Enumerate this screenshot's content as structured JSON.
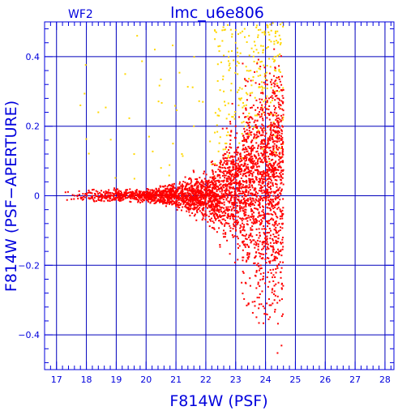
{
  "chart_data": {
    "type": "scatter",
    "title": "lmc_u6e806",
    "panel_label": "WF2",
    "xlabel": "F814W (PSF)",
    "ylabel": "F814W (PSF−APERTURE)",
    "xlim": [
      16.6,
      28.3
    ],
    "ylim": [
      -0.5,
      0.5
    ],
    "grid": true,
    "x_ticks": [
      "17",
      "18",
      "19",
      "20",
      "21",
      "22",
      "23",
      "24",
      "25",
      "26",
      "27",
      "28"
    ],
    "y_ticks": [
      "−0.4",
      "−0.2",
      "0",
      "0.2",
      "0.4"
    ],
    "y_tick_values": [
      -0.4,
      -0.2,
      0,
      0.2,
      0.4
    ],
    "x_tick_values": [
      17,
      18,
      19,
      20,
      21,
      22,
      23,
      24,
      25,
      26,
      27,
      28
    ],
    "colors": {
      "axes": "#0000dd",
      "grid": "#0000bb",
      "series_red": "#ee0000",
      "series_yellow": "#ffd700"
    },
    "series": [
      {
        "color": "#ff0000",
        "distribution": "dense cloud: tight locus near 0 from x=17.3 to 21.5, widening to about ±0.3 between x=22.5 and 24.6, sharp cutoff near x=24.6",
        "points": [
          [
            17.3,
            0.01
          ],
          [
            17.5,
            -0.01
          ],
          [
            17.7,
            0.0
          ],
          [
            17.9,
            -0.01
          ],
          [
            18.1,
            0.01
          ],
          [
            18.3,
            0.0
          ],
          [
            18.5,
            -0.01
          ],
          [
            18.7,
            0.01
          ],
          [
            18.9,
            0.0
          ],
          [
            19.1,
            -0.01
          ],
          [
            19.3,
            0.01
          ],
          [
            19.5,
            0.0
          ],
          [
            19.7,
            -0.01
          ],
          [
            19.9,
            0.01
          ],
          [
            20.1,
            0.0
          ],
          [
            20.3,
            0.01
          ],
          [
            20.5,
            -0.01
          ],
          [
            20.7,
            0.02
          ],
          [
            20.9,
            0.0
          ],
          [
            21.1,
            -0.02
          ],
          [
            21.3,
            0.02
          ],
          [
            21.5,
            0.0
          ],
          [
            21.7,
            -0.02
          ],
          [
            21.9,
            0.03
          ],
          [
            22.1,
            -0.03
          ],
          [
            22.3,
            0.04
          ],
          [
            22.5,
            -0.04
          ],
          [
            22.7,
            0.05
          ],
          [
            22.9,
            -0.06
          ],
          [
            23.1,
            0.08
          ],
          [
            23.3,
            -0.1
          ],
          [
            23.5,
            0.12
          ],
          [
            23.7,
            -0.14
          ],
          [
            23.9,
            0.16
          ],
          [
            24.1,
            -0.18
          ],
          [
            24.3,
            0.2
          ],
          [
            24.5,
            -0.22
          ],
          [
            23.2,
            -0.25
          ],
          [
            23.6,
            0.26
          ],
          [
            24.0,
            -0.34
          ],
          [
            24.2,
            0.32
          ],
          [
            23.4,
            0.18
          ],
          [
            24.4,
            0.28
          ],
          [
            23.8,
            -0.26
          ],
          [
            22.8,
            0.14
          ],
          [
            22.6,
            -0.1
          ],
          [
            24.3,
            -0.3
          ],
          [
            23.0,
            0.2
          ]
        ]
      },
      {
        "color": "#ffd700",
        "distribution": "sparse points above the main locus, mostly 0.05 to 0.5, concentrated near x=23 to 24.5",
        "points": [
          [
            17.8,
            0.26
          ],
          [
            18.4,
            0.24
          ],
          [
            19.3,
            0.35
          ],
          [
            19.7,
            0.46
          ],
          [
            20.1,
            0.17
          ],
          [
            20.5,
            0.08
          ],
          [
            20.9,
            0.15
          ],
          [
            21.2,
            0.12
          ],
          [
            21.6,
            0.2
          ],
          [
            21.9,
            0.27
          ],
          [
            22.2,
            0.09
          ],
          [
            22.4,
            0.33
          ],
          [
            22.6,
            0.3
          ],
          [
            22.8,
            0.38
          ],
          [
            23.0,
            0.44
          ],
          [
            23.1,
            0.26
          ],
          [
            23.3,
            0.48
          ],
          [
            23.5,
            0.36
          ],
          [
            23.7,
            0.42
          ],
          [
            23.9,
            0.31
          ],
          [
            24.1,
            0.47
          ],
          [
            24.3,
            0.39
          ],
          [
            24.5,
            0.45
          ]
        ]
      }
    ]
  }
}
